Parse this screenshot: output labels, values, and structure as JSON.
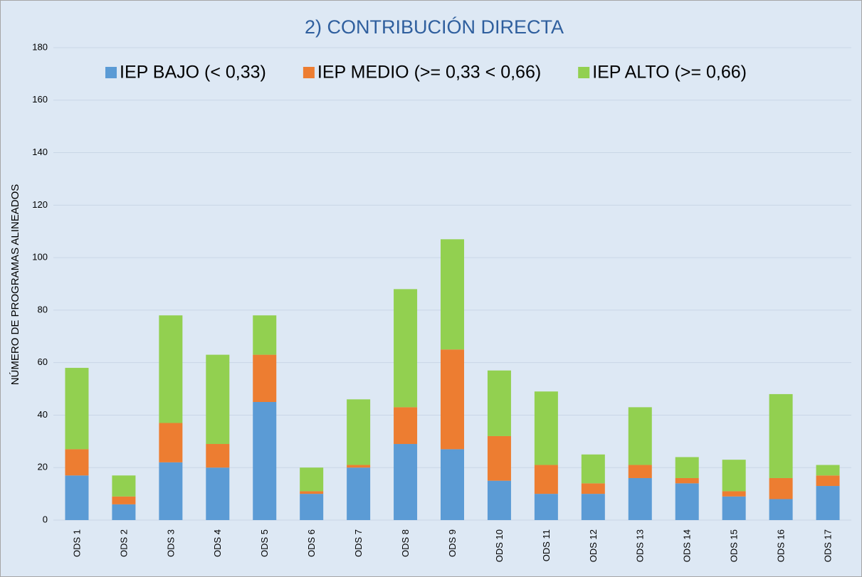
{
  "chart_data": {
    "type": "stacked_bar",
    "title": "2) CONTRIBUCIÓN DIRECTA",
    "y_label": "NÚMERO DE PROGRAMAS ALINEADOS",
    "categories": [
      "ODS 1",
      "ODS 2",
      "ODS 3",
      "ODS 4",
      "ODS 5",
      "ODS 6",
      "ODS 7",
      "ODS 8",
      "ODS 9",
      "ODS 10",
      "ODS 11",
      "ODS 12",
      "ODS 13",
      "ODS 14",
      "ODS 15",
      "ODS 16",
      "ODS 17"
    ],
    "series": [
      {
        "name": "IEP BAJO (< 0,33)",
        "color": "#5b9bd5",
        "values": [
          17,
          6,
          22,
          20,
          45,
          10,
          20,
          29,
          27,
          15,
          10,
          10,
          16,
          14,
          9,
          8,
          13
        ]
      },
      {
        "name": "IEP MEDIO (>= 0,33 < 0,66)",
        "color": "#ed7d31",
        "values": [
          10,
          3,
          15,
          9,
          18,
          1,
          1,
          14,
          38,
          17,
          11,
          4,
          5,
          2,
          2,
          8,
          4
        ]
      },
      {
        "name": "IEP ALTO (>= 0,66)",
        "color": "#92d050",
        "values": [
          31,
          8,
          41,
          34,
          15,
          9,
          25,
          45,
          42,
          25,
          28,
          11,
          22,
          8,
          12,
          32,
          4
        ]
      }
    ],
    "ylim": [
      0,
      180
    ],
    "yticks": [
      0,
      20,
      40,
      60,
      80,
      100,
      120,
      140,
      160,
      180
    ],
    "grid": true,
    "legend": "top"
  }
}
